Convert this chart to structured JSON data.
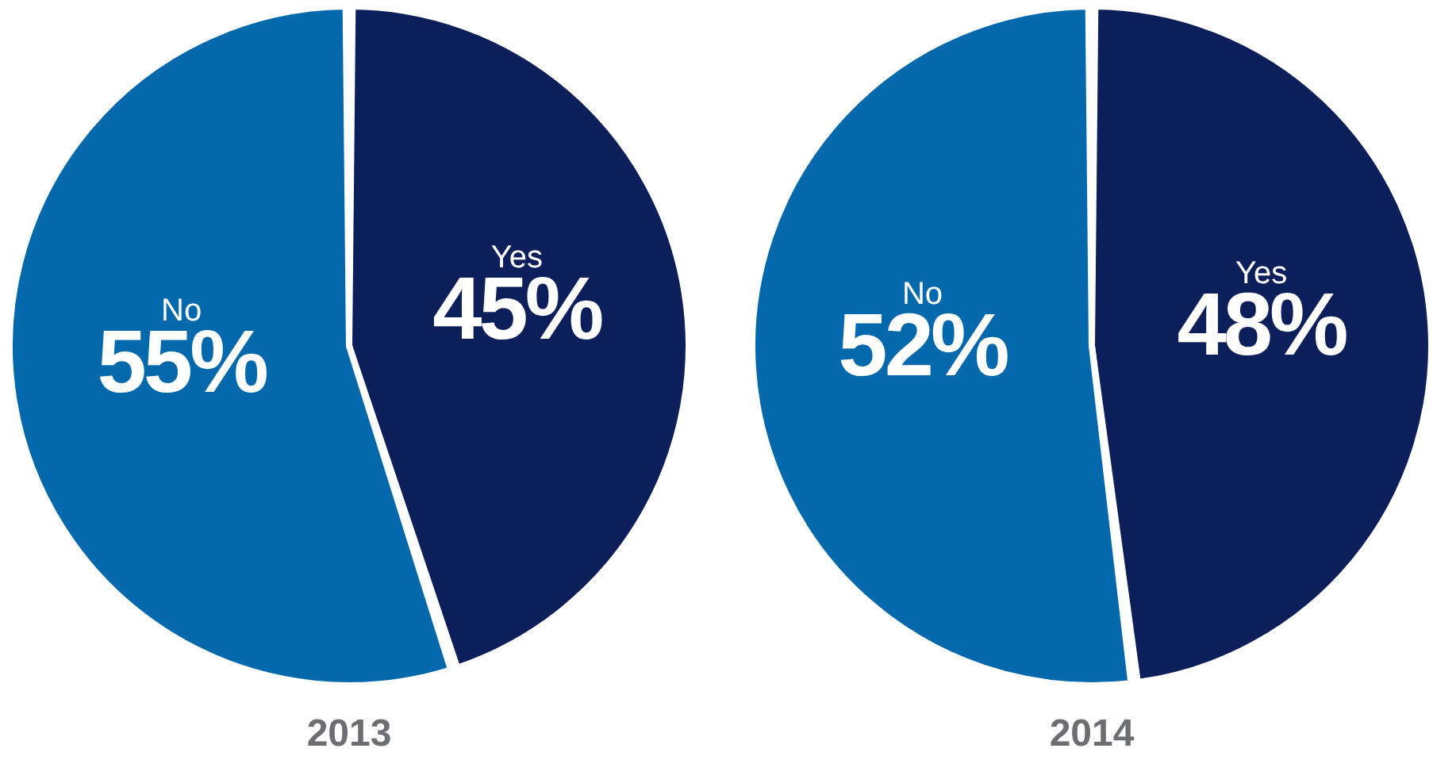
{
  "chart_data": [
    {
      "type": "pie",
      "title": "2013",
      "categories": [
        "Yes",
        "No"
      ],
      "values": [
        45,
        55
      ],
      "value_labels": [
        "45%",
        "55%"
      ],
      "colors": [
        "#0c1f5a",
        "#0468ad"
      ]
    },
    {
      "type": "pie",
      "title": "2014",
      "categories": [
        "Yes",
        "No"
      ],
      "values": [
        48,
        52
      ],
      "value_labels": [
        "48%",
        "52%"
      ],
      "colors": [
        "#0c1f5a",
        "#0468ad"
      ]
    }
  ]
}
